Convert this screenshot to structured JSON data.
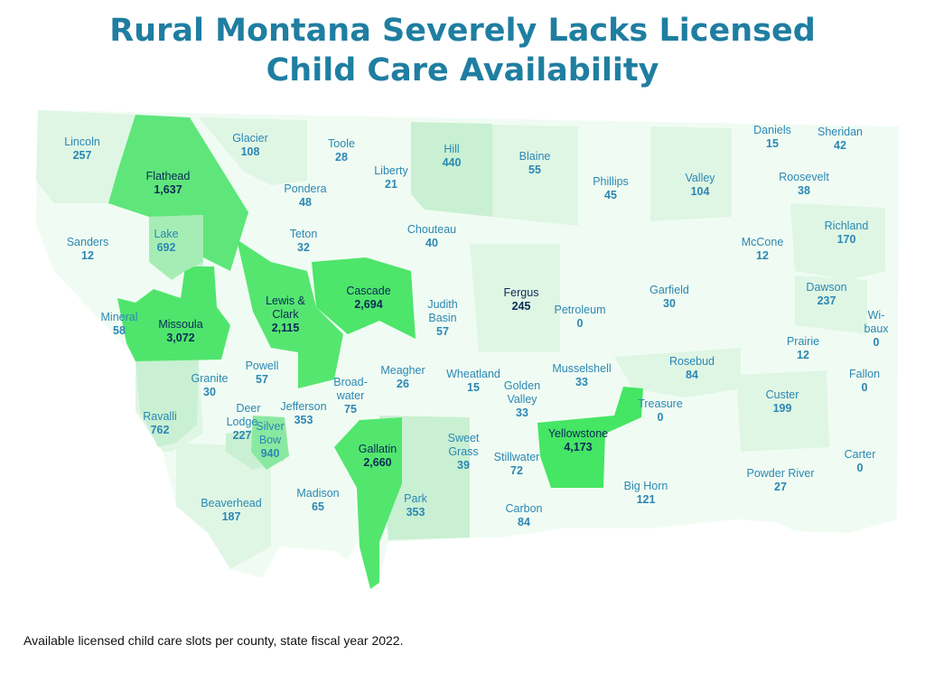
{
  "title": {
    "line1": "Rural Montana Severely Lacks Licensed",
    "line2": "Child Care Availability"
  },
  "caption": "Available licensed child care slots per county, state fiscal year 2022.",
  "colors": {
    "title": "#1f7ea1",
    "label": "#2b87b4",
    "label_dark": "#0b2b57",
    "scale": [
      "#f0fcf3",
      "#dff6e4",
      "#c9f0d2",
      "#8ae9a0",
      "#5ee67a",
      "#45e664"
    ]
  },
  "counties": [
    {
      "name": "Lincoln",
      "value": "257"
    },
    {
      "name": "Flathead",
      "value": "1,637"
    },
    {
      "name": "Glacier",
      "value": "108"
    },
    {
      "name": "Toole",
      "value": "28"
    },
    {
      "name": "Liberty",
      "value": "21"
    },
    {
      "name": "Hill",
      "value": "440"
    },
    {
      "name": "Blaine",
      "value": "55"
    },
    {
      "name": "Phillips",
      "value": "45"
    },
    {
      "name": "Valley",
      "value": "104"
    },
    {
      "name": "Daniels",
      "value": "15"
    },
    {
      "name": "Sheridan",
      "value": "42"
    },
    {
      "name": "Roosevelt",
      "value": "38"
    },
    {
      "name": "Pondera",
      "value": "48"
    },
    {
      "name": "Sanders",
      "value": "12"
    },
    {
      "name": "Lake",
      "value": "692"
    },
    {
      "name": "Teton",
      "value": "32"
    },
    {
      "name": "Chouteau",
      "value": "40"
    },
    {
      "name": "McCone",
      "value": "12"
    },
    {
      "name": "Richland",
      "value": "170"
    },
    {
      "name": "Mineral",
      "value": "58"
    },
    {
      "name": "Missoula",
      "value": "3,072"
    },
    {
      "name": "Lewis &",
      "name2": "Clark",
      "value": "2,115"
    },
    {
      "name": "Cascade",
      "value": "2,694"
    },
    {
      "name": "Judith",
      "name2": "Basin",
      "value": "57"
    },
    {
      "name": "Fergus",
      "value": "245"
    },
    {
      "name": "Petroleum",
      "value": "0"
    },
    {
      "name": "Garfield",
      "value": "30"
    },
    {
      "name": "Dawson",
      "value": "237"
    },
    {
      "name": "Wi-",
      "name2": "baux",
      "value": "0"
    },
    {
      "name": "Prairie",
      "value": "12"
    },
    {
      "name": "Granite",
      "value": "30"
    },
    {
      "name": "Powell",
      "value": "57"
    },
    {
      "name": "Broad-",
      "name2": "water",
      "value": "75"
    },
    {
      "name": "Meagher",
      "value": "26"
    },
    {
      "name": "Wheatland",
      "value": "15"
    },
    {
      "name": "Golden",
      "name2": "Valley",
      "value": "33"
    },
    {
      "name": "Musselshell",
      "value": "33"
    },
    {
      "name": "Rosebud",
      "value": "84"
    },
    {
      "name": "Fallon",
      "value": "0"
    },
    {
      "name": "Custer",
      "value": "199"
    },
    {
      "name": "Treasure",
      "value": "0"
    },
    {
      "name": "Ravalli",
      "value": "762"
    },
    {
      "name": "Deer",
      "name2": "Lodge",
      "value": "227"
    },
    {
      "name": "Jefferson",
      "value": "353"
    },
    {
      "name": "Silver",
      "name2": "Bow",
      "value": "940"
    },
    {
      "name": "Gallatin",
      "value": "2,660"
    },
    {
      "name": "Sweet",
      "name2": "Grass",
      "value": "39"
    },
    {
      "name": "Stillwater",
      "value": "72"
    },
    {
      "name": "Yellowstone",
      "value": "4,173"
    },
    {
      "name": "Carter",
      "value": "0"
    },
    {
      "name": "Big Horn",
      "value": "121"
    },
    {
      "name": "Powder River",
      "value": "27"
    },
    {
      "name": "Beaverhead",
      "value": "187"
    },
    {
      "name": "Madison",
      "value": "65"
    },
    {
      "name": "Park",
      "value": "353"
    },
    {
      "name": "Carbon",
      "value": "84"
    }
  ]
}
